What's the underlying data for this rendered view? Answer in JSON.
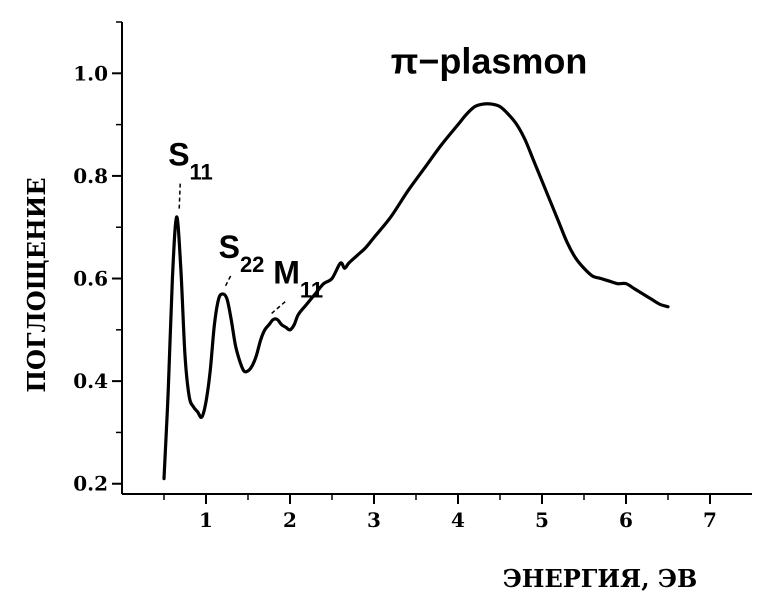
{
  "chart_data": {
    "type": "line",
    "xlabel": "ЭНЕРГИЯ, ЭВ",
    "ylabel": "ПОГЛОЩЕНИЕ",
    "xlim": [
      0,
      7.5
    ],
    "ylim": [
      0.18,
      1.1
    ],
    "x_ticks": [
      "1",
      "2",
      "3",
      "4",
      "5",
      "6",
      "7"
    ],
    "y_ticks": [
      "0.2",
      "0.4",
      "0.6",
      "0.8",
      "1.0"
    ],
    "grid": false,
    "line_color": "#000000",
    "series": [
      {
        "x": [
          0.5,
          0.55,
          0.6,
          0.65,
          0.7,
          0.75,
          0.8,
          0.85,
          0.9,
          0.95,
          1.0,
          1.05,
          1.1,
          1.15,
          1.2,
          1.25,
          1.3,
          1.35,
          1.4,
          1.45,
          1.5,
          1.55,
          1.6,
          1.65,
          1.7,
          1.75,
          1.8,
          1.85,
          1.9,
          1.95,
          2.0,
          2.05,
          2.1,
          2.2,
          2.3,
          2.4,
          2.5,
          2.6,
          2.65,
          2.7,
          2.8,
          2.9,
          3.0,
          3.2,
          3.4,
          3.6,
          3.8,
          4.0,
          4.1,
          4.2,
          4.3,
          4.4,
          4.5,
          4.6,
          4.7,
          4.8,
          4.9,
          5.0,
          5.1,
          5.2,
          5.3,
          5.4,
          5.5,
          5.6,
          5.7,
          5.8,
          5.9,
          6.0,
          6.1,
          6.2,
          6.3,
          6.4,
          6.5
        ],
        "y": [
          0.21,
          0.38,
          0.6,
          0.72,
          0.62,
          0.45,
          0.37,
          0.35,
          0.34,
          0.33,
          0.36,
          0.42,
          0.51,
          0.56,
          0.57,
          0.56,
          0.52,
          0.47,
          0.44,
          0.42,
          0.42,
          0.43,
          0.45,
          0.48,
          0.5,
          0.51,
          0.52,
          0.52,
          0.51,
          0.505,
          0.5,
          0.51,
          0.53,
          0.55,
          0.57,
          0.59,
          0.6,
          0.63,
          0.62,
          0.63,
          0.645,
          0.66,
          0.68,
          0.72,
          0.77,
          0.815,
          0.86,
          0.9,
          0.92,
          0.935,
          0.94,
          0.94,
          0.935,
          0.92,
          0.9,
          0.87,
          0.83,
          0.79,
          0.75,
          0.71,
          0.67,
          0.64,
          0.62,
          0.605,
          0.6,
          0.595,
          0.59,
          0.59,
          0.58,
          0.57,
          0.56,
          0.55,
          0.545
        ]
      }
    ],
    "annotations": [
      {
        "label": "S",
        "sub": "11",
        "text_x": 0.55,
        "text_y": 0.82,
        "point_x": 0.68,
        "point_y": 0.72
      },
      {
        "label": "S",
        "sub": "22",
        "text_x": 1.15,
        "text_y": 0.64,
        "point_x": 1.22,
        "point_y": 0.57
      },
      {
        "label": "M",
        "sub": "11",
        "text_x": 1.8,
        "text_y": 0.59,
        "point_x": 1.78,
        "point_y": 0.52
      },
      {
        "label": "π−plasmon",
        "sub": "",
        "text_x": 3.2,
        "text_y": 1.0,
        "point_x": null,
        "point_y": null
      }
    ]
  }
}
